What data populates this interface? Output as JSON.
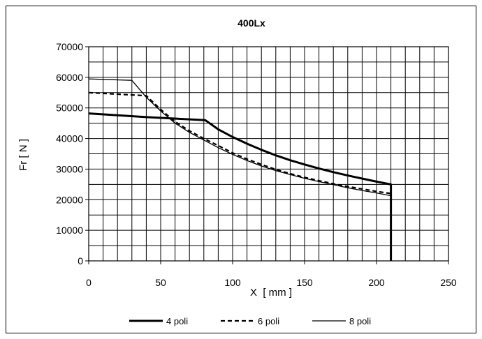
{
  "chart_data": {
    "type": "line",
    "title": "400Lx",
    "xlabel": "X  [ mm ]",
    "ylabel": "Fr  [ N ]",
    "xlim": [
      0,
      250
    ],
    "ylim": [
      0,
      70000
    ],
    "x_ticks": [
      "0",
      "50",
      "100",
      "150",
      "200",
      "250"
    ],
    "y_ticks": [
      "0",
      "10000",
      "20000",
      "30000",
      "40000",
      "50000",
      "60000",
      "70000"
    ],
    "grid": true,
    "legend_position": "bottom",
    "series": [
      {
        "name": "4 poli",
        "style": "thick-solid",
        "x": [
          0,
          40,
          81,
          90,
          100,
          110,
          120,
          130,
          140,
          150,
          160,
          170,
          180,
          190,
          200,
          210,
          210
        ],
        "y": [
          48200,
          47000,
          46000,
          43000,
          40500,
          38300,
          36300,
          34500,
          32900,
          31500,
          30200,
          29000,
          27900,
          26900,
          25900,
          25000,
          0
        ]
      },
      {
        "name": "6 poli",
        "style": "dashed",
        "x": [
          0,
          40,
          50,
          60,
          70,
          80,
          90,
          100,
          110,
          120,
          130,
          140,
          150,
          160,
          170,
          180,
          190,
          200,
          210,
          210
        ],
        "y": [
          55000,
          54000,
          49500,
          45500,
          42500,
          40000,
          37700,
          35300,
          33300,
          31500,
          29900,
          28500,
          27300,
          26200,
          25200,
          24300,
          23500,
          22700,
          22000,
          0
        ]
      },
      {
        "name": "8 poli",
        "style": "thin-solid",
        "x": [
          0,
          30,
          40,
          50,
          60,
          70,
          80,
          90,
          100,
          110,
          120,
          130,
          140,
          150,
          160,
          170,
          180,
          190,
          200,
          210,
          210
        ],
        "y": [
          59500,
          59000,
          53500,
          49000,
          45000,
          42000,
          39500,
          37000,
          34800,
          32800,
          31000,
          29500,
          28200,
          27000,
          25900,
          24900,
          23900,
          23000,
          22200,
          21300,
          0
        ]
      }
    ]
  },
  "colors": {
    "line": "#000000",
    "grid": "#000000",
    "background": "#ffffff"
  }
}
